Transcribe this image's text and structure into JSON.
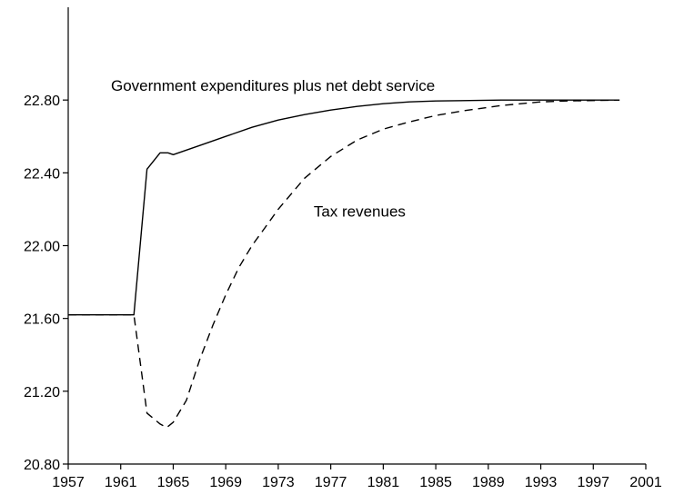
{
  "chart_data": {
    "type": "line",
    "title": "",
    "xlabel": "",
    "ylabel": "",
    "xlim": [
      1957,
      2001
    ],
    "ylim": [
      20.8,
      23.2
    ],
    "x_ticks": [
      "1957",
      "1961",
      "1965",
      "1969",
      "1973",
      "1977",
      "1981",
      "1985",
      "1989",
      "1993",
      "1997",
      "2001"
    ],
    "y_ticks": [
      "20.80",
      "21.20",
      "21.60",
      "22.00",
      "22.40",
      "22.80"
    ],
    "grid": false,
    "legend": "none",
    "series": [
      {
        "label": "Government expenditures plus net debt service",
        "style": "solid",
        "color": "#000000",
        "x": [
          1957,
          1962,
          1963,
          1964,
          1964.6,
          1965,
          1967,
          1969,
          1971,
          1973,
          1975,
          1977,
          1979,
          1981,
          1983,
          1985,
          1990,
          1995,
          1999
        ],
        "y": [
          21.62,
          21.62,
          22.42,
          22.51,
          22.51,
          22.5,
          22.55,
          22.6,
          22.65,
          22.69,
          22.72,
          22.745,
          22.765,
          22.78,
          22.79,
          22.795,
          22.8,
          22.8,
          22.8
        ]
      },
      {
        "label": "Tax revenues",
        "style": "dashed",
        "color": "#000000",
        "x": [
          1957,
          1962,
          1963,
          1964,
          1964.5,
          1965,
          1966,
          1967,
          1968,
          1969,
          1970,
          1971,
          1972,
          1973,
          1975,
          1977,
          1979,
          1981,
          1983,
          1985,
          1987,
          1990,
          1993,
          1995,
          1999
        ],
        "y": [
          21.62,
          21.62,
          21.08,
          21.02,
          21.0,
          21.03,
          21.15,
          21.37,
          21.56,
          21.73,
          21.88,
          22.0,
          22.1,
          22.2,
          22.37,
          22.49,
          22.58,
          22.64,
          22.68,
          22.715,
          22.74,
          22.77,
          22.79,
          22.795,
          22.8
        ]
      }
    ],
    "annotations": [
      {
        "text": "Government expenditures plus net debt service",
        "x": 1972.6,
        "y": 22.85
      },
      {
        "text": "Tax revenues",
        "x": 1979.2,
        "y": 22.16
      }
    ]
  }
}
